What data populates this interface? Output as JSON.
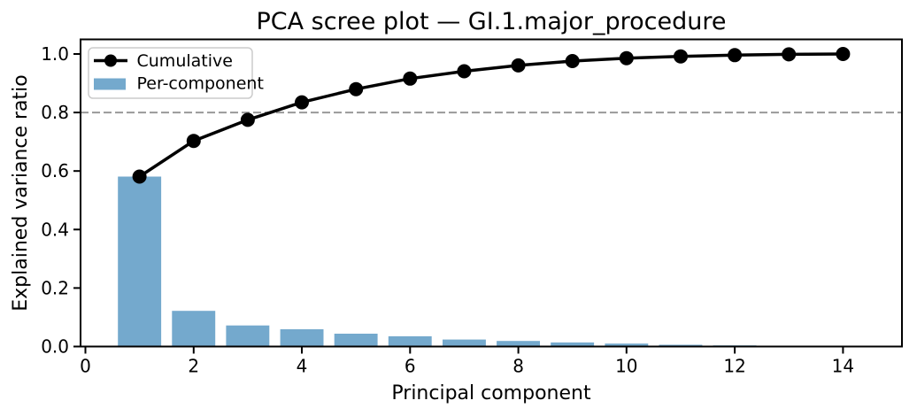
{
  "figure": {
    "title": "PCA scree plot — GI.1.major_procedure",
    "xlabel": "Principal component",
    "ylabel": "Explained variance ratio"
  },
  "legend": {
    "position": "upper left",
    "items": [
      {
        "label": "Cumulative",
        "type": "line",
        "color": "#000000"
      },
      {
        "label": "Per-component",
        "type": "patch",
        "color": "#74a9cd"
      }
    ]
  },
  "colors": {
    "bar": "#74a9cd",
    "cumulative_line": "#000000",
    "threshold_line": "#999999",
    "legend_border": "#cccccc",
    "spine": "#000000"
  },
  "chart_data": {
    "type": "bar",
    "subtype": "bar+line combo (scree plot)",
    "title": "PCA scree plot — GI.1.major_procedure",
    "xlabel": "Principal component",
    "ylabel": "Explained variance ratio",
    "x": [
      1,
      2,
      3,
      4,
      5,
      6,
      7,
      8,
      9,
      10,
      11,
      12,
      13,
      14
    ],
    "series": [
      {
        "name": "Cumulative",
        "type": "line",
        "color": "#000000",
        "marker": "circle",
        "values": [
          0.581,
          0.703,
          0.775,
          0.835,
          0.88,
          0.916,
          0.941,
          0.961,
          0.976,
          0.986,
          0.992,
          0.996,
          0.999,
          1.0
        ]
      },
      {
        "name": "Per-component",
        "type": "bar",
        "color": "#74a9cd",
        "bar_width": 0.8,
        "values": [
          0.581,
          0.122,
          0.072,
          0.059,
          0.044,
          0.035,
          0.024,
          0.019,
          0.014,
          0.01,
          0.006,
          0.004,
          0.002,
          0.001
        ]
      }
    ],
    "threshold_line": {
      "y": 0.8,
      "style": "dashed",
      "color": "#999999"
    },
    "xticks": [
      0,
      2,
      4,
      6,
      8,
      10,
      12,
      14
    ],
    "xtick_labels": [
      "0",
      "2",
      "4",
      "6",
      "8",
      "10",
      "12",
      "14"
    ],
    "yticks": [
      0.0,
      0.2,
      0.4,
      0.6,
      0.8,
      1.0
    ],
    "ytick_labels": [
      "0.0",
      "0.2",
      "0.4",
      "0.6",
      "0.8",
      "1.0"
    ],
    "xlim": [
      -0.09,
      15.09
    ],
    "ylim": [
      0,
      1.05
    ],
    "grid": false,
    "legend_position": "upper left"
  }
}
